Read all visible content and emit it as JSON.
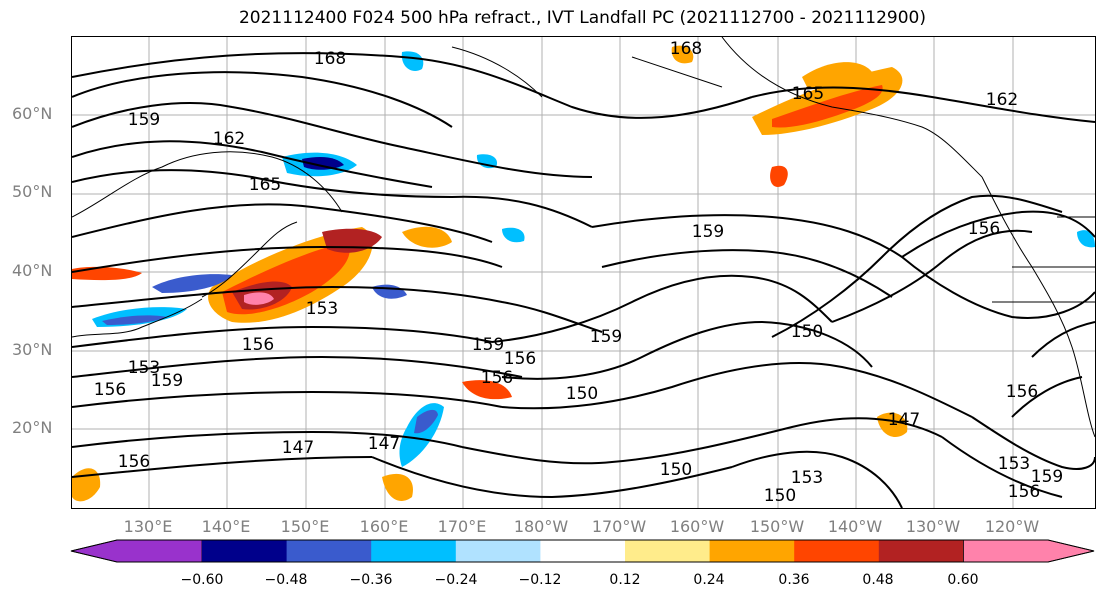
{
  "title": "2021112400 F024 500 hPa refract., IVT Landfall PC (2021112700 - 2021112900)",
  "lat_labels": [
    "60°N",
    "50°N",
    "40°N",
    "30°N",
    "20°N"
  ],
  "lon_labels": [
    "130°E",
    "140°E",
    "150°E",
    "160°E",
    "170°E",
    "180°W",
    "170°W",
    "160°W",
    "150°W",
    "140°W",
    "130°W",
    "120°W"
  ],
  "contour_labels": [
    "168",
    "168",
    "165",
    "162",
    "159",
    "162",
    "165",
    "159",
    "156",
    "153",
    "156",
    "159",
    "159",
    "156",
    "156",
    "150",
    "150",
    "153",
    "159",
    "156",
    "147",
    "147",
    "150",
    "150",
    "153",
    "156",
    "156",
    "147",
    "153",
    "156",
    "159"
  ],
  "colorbar": {
    "ticks": [
      "−0.60",
      "−0.48",
      "−0.36",
      "−0.24",
      "−0.12",
      "0.12",
      "0.24",
      "0.36",
      "0.48",
      "0.60"
    ],
    "colors": [
      "#9932CC",
      "#00008B",
      "#3A5BCD",
      "#00BFFF",
      "#B0E2FF",
      "#FFFFFF",
      "#FFEC8B",
      "#FFA500",
      "#FF4500",
      "#B22222",
      "#FF82AB"
    ]
  }
}
